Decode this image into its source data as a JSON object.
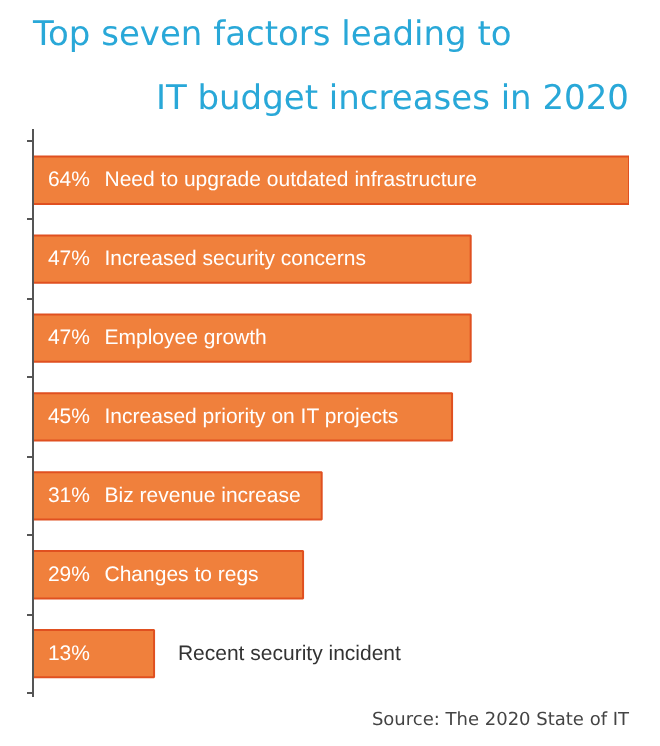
{
  "chart_data": {
    "type": "bar",
    "orientation": "horizontal",
    "title": "Top seven factors leading to",
    "subtitle": "IT budget increases in 2020",
    "categories": [
      "Need to upgrade outdated infrastructure",
      "Increased security concerns",
      "Employee growth",
      "Increased priority on IT projects",
      "Biz revenue increase",
      "Changes to regs",
      "Recent security incident"
    ],
    "values": [
      64,
      47,
      47,
      45,
      31,
      29,
      13
    ],
    "value_labels": [
      "64%",
      "47%",
      "47%",
      "45%",
      "31%",
      "29%",
      "13%"
    ],
    "color": "#f0803c",
    "annotations": [
      "Source: The 2020 State of IT"
    ]
  }
}
